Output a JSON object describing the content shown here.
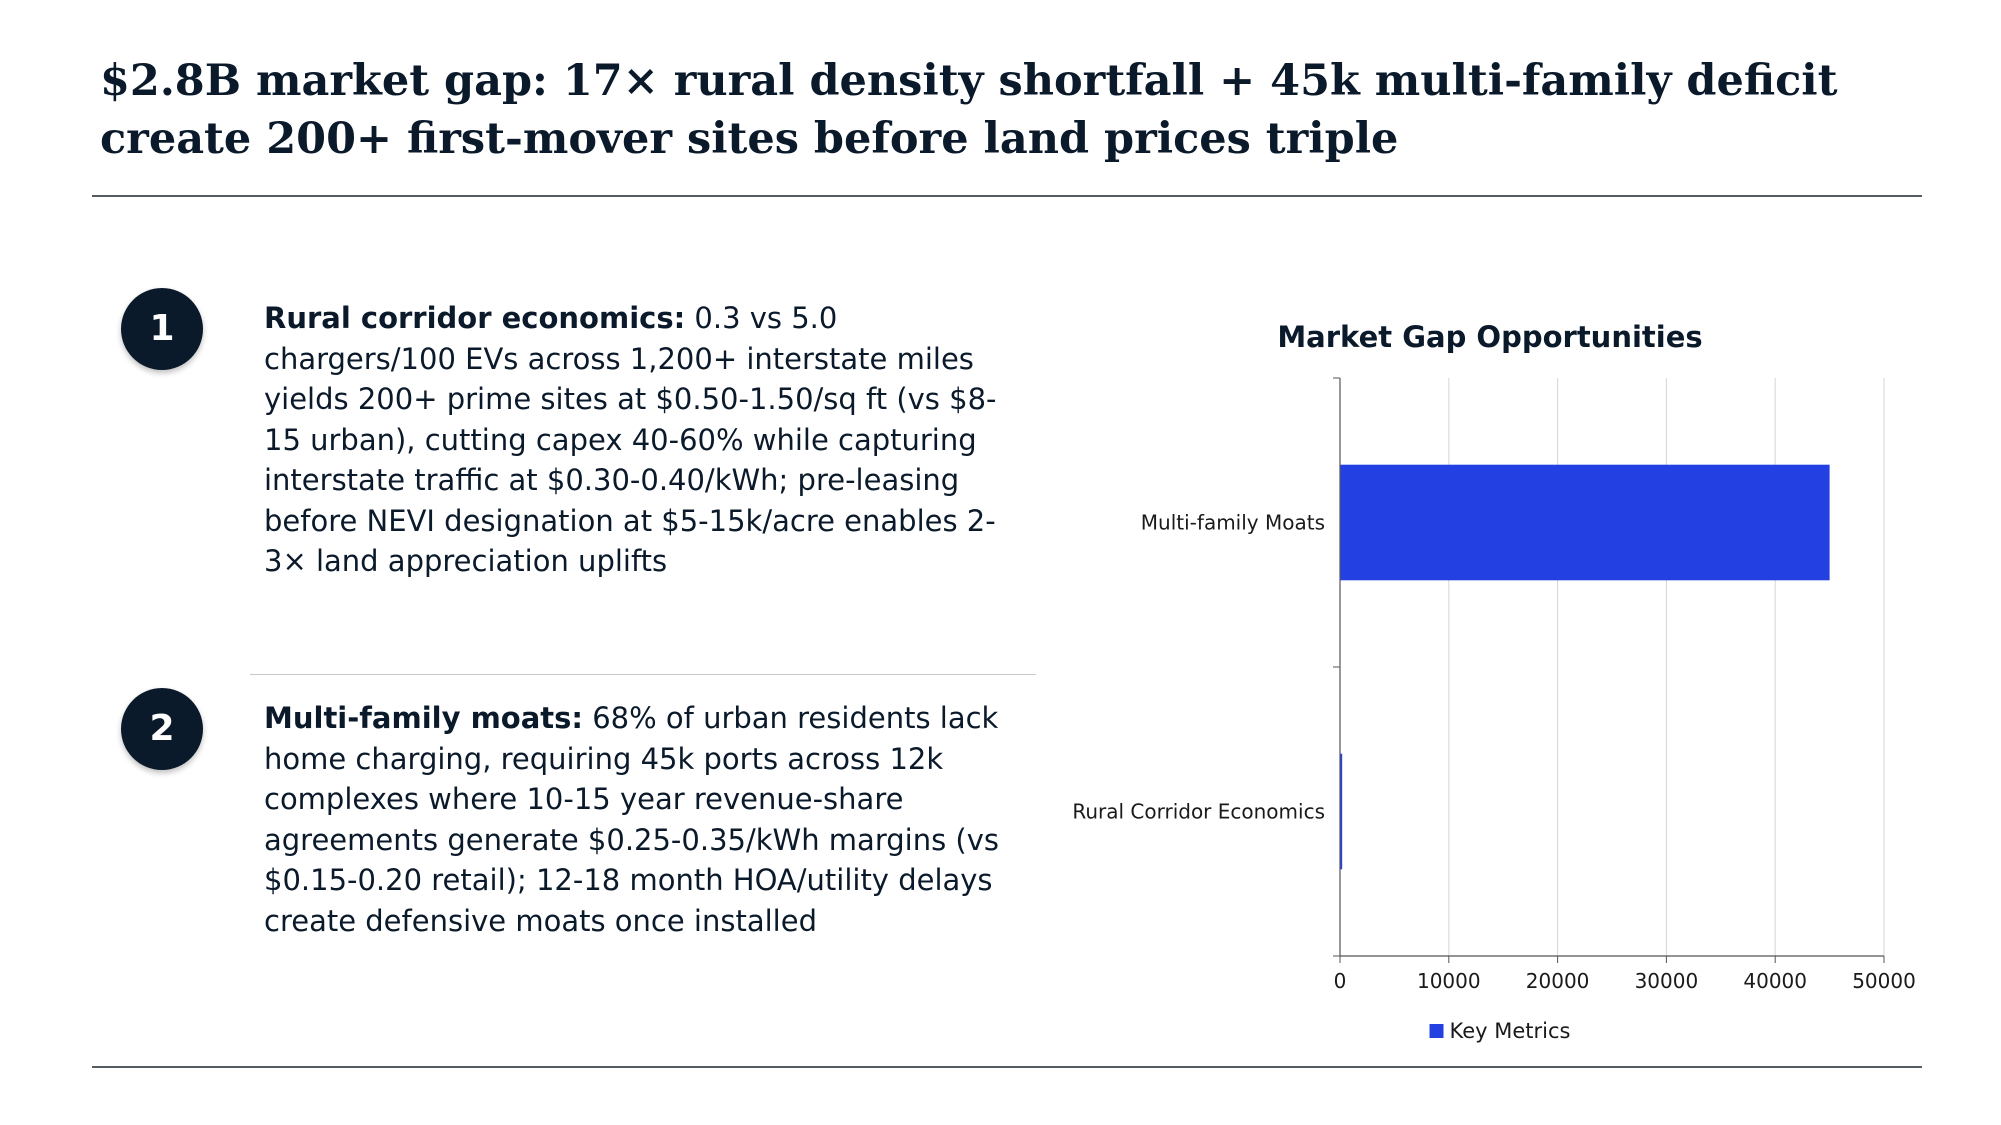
{
  "slide": {
    "title": "$2.8B market gap: 17× rural density shortfall + 45k multi-family deficit create 200+ first-mover sites before land prices triple"
  },
  "points": [
    {
      "number": "1",
      "heading": "Rural corridor economics:",
      "body": " 0.3 vs 5.0 chargers/100 EVs across 1,200+ interstate miles yields 200+ prime sites at $0.50-1.50/sq ft (vs $8-15 urban), cutting capex 40-60% while capturing interstate traffic at $0.30-0.40/kWh; pre-leasing before NEVI designation at $5-15k/acre enables 2-3× land appreciation uplifts"
    },
    {
      "number": "2",
      "heading": "Multi-family moats:",
      "body": " 68% of urban residents lack home charging, requiring 45k ports across 12k complexes where 10-15 year revenue-share agreements generate $0.25-0.35/kWh margins (vs $0.15-0.20 retail); 12-18 month HOA/utility delays create defensive moats once installed"
    }
  ],
  "chart_data": {
    "type": "bar",
    "orientation": "horizontal",
    "title": "Market Gap Opportunities",
    "categories": [
      "Rural Corridor Economics",
      "Multi-family Moats"
    ],
    "series": [
      {
        "name": "Key Metrics",
        "values": [
          200,
          45000
        ],
        "color": "#2340e3"
      }
    ],
    "xlim": [
      0,
      50000
    ],
    "xticks": [
      0,
      10000,
      20000,
      30000,
      40000,
      50000
    ],
    "xtick_labels": [
      "0",
      "10000",
      "20000",
      "30000",
      "40000",
      "50000"
    ],
    "xlabel": "",
    "ylabel": "",
    "grid": true,
    "legend_position": "bottom"
  }
}
